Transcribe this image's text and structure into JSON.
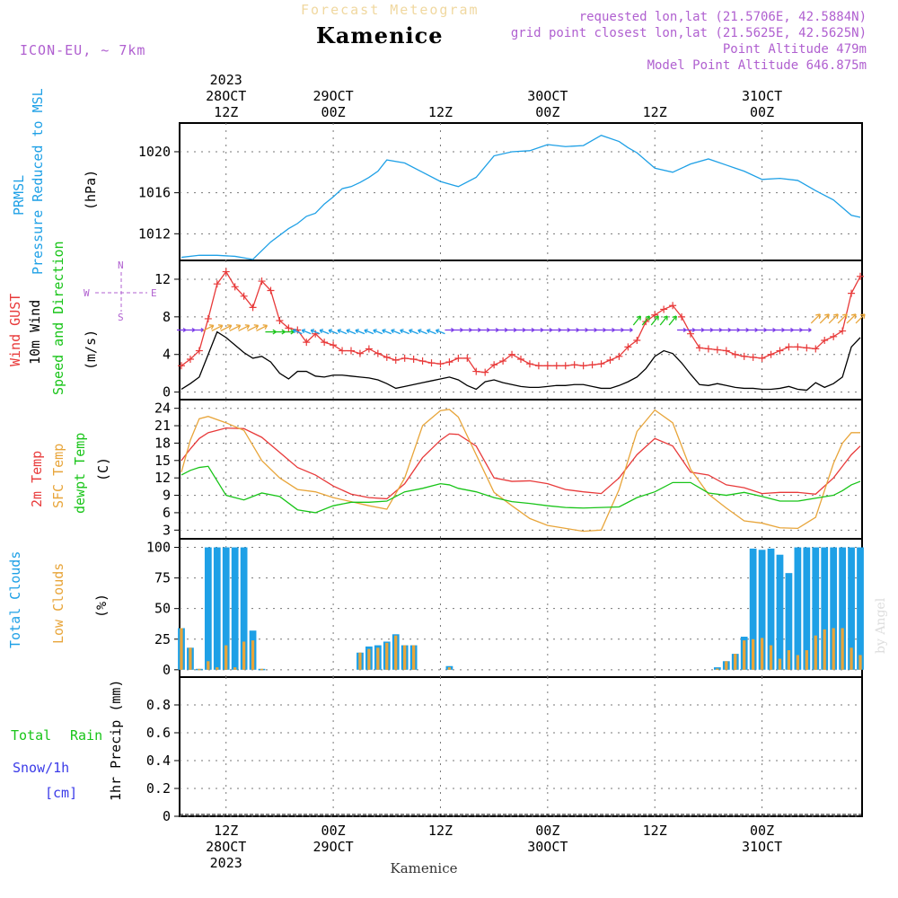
{
  "header": {
    "title": "Kamenice",
    "subtitle": "Forecast Meteogram",
    "model": "ICON-EU, ~ 7km",
    "requested": "requested lon,lat (21.5706E, 42.5884N)",
    "gridpoint": "grid point closest lon,lat (21.5625E, 42.5625N)",
    "point_alt": "Point Altitude 479m",
    "model_alt": "Model Point Altitude 646.875m",
    "footer": "Kamenice",
    "credit": "by Angel",
    "colors": {
      "title_fade": "#f0d8a0",
      "meta": "#b060d0"
    }
  },
  "time_axis": {
    "top_labels": [
      {
        "h": 12,
        "lines": [
          "2023",
          "28OCT",
          "12Z"
        ]
      },
      {
        "h": 24,
        "lines": [
          "29OCT",
          "00Z"
        ]
      },
      {
        "h": 36,
        "lines": [
          "12Z"
        ]
      },
      {
        "h": 48,
        "lines": [
          "30OCT",
          "00Z"
        ]
      },
      {
        "h": 60,
        "lines": [
          "12Z"
        ]
      },
      {
        "h": 72,
        "lines": [
          "31OCT",
          "00Z"
        ]
      }
    ],
    "bottom_labels": [
      {
        "h": 12,
        "lines": [
          "12Z",
          "28OCT",
          "2023"
        ]
      },
      {
        "h": 24,
        "lines": [
          "00Z",
          "29OCT"
        ]
      },
      {
        "h": 36,
        "lines": [
          "12Z"
        ]
      },
      {
        "h": 48,
        "lines": [
          "00Z",
          "30OCT"
        ]
      },
      {
        "h": 60,
        "lines": [
          "12Z"
        ]
      },
      {
        "h": 72,
        "lines": [
          "00Z",
          "31OCT"
        ]
      }
    ],
    "x_range_hours": [
      6.8,
      83.2
    ]
  },
  "chart_data": [
    {
      "type": "line",
      "panel": "pressure",
      "labels": [
        "PRMSL",
        "Pressure Reduced to MSL",
        "(hPa)"
      ],
      "ylim": [
        1009.4,
        1022.8
      ],
      "yticks": [
        1012,
        1016,
        1020
      ],
      "x": [
        7,
        9,
        11,
        13,
        15,
        17,
        19,
        20,
        21,
        22,
        23,
        24,
        25,
        26,
        27,
        28,
        29,
        30,
        32,
        34,
        36,
        38,
        40,
        42,
        44,
        46,
        48,
        50,
        52,
        54,
        56,
        57,
        58,
        60,
        62,
        64,
        66,
        68,
        69,
        70,
        72,
        74,
        76,
        78,
        80,
        82,
        83
      ],
      "series": [
        {
          "name": "PRMSL",
          "color": "#1ea0e6",
          "values": [
            1009.7,
            1009.9,
            1009.9,
            1009.8,
            1009.5,
            1011.2,
            1012.5,
            1013.0,
            1013.7,
            1014.0,
            1014.9,
            1015.6,
            1016.4,
            1016.6,
            1017.0,
            1017.5,
            1018.1,
            1019.2,
            1018.9,
            1018.0,
            1017.1,
            1016.6,
            1017.5,
            1019.6,
            1020.0,
            1020.1,
            1020.7,
            1020.5,
            1020.6,
            1021.6,
            1021.0,
            1020.4,
            1019.9,
            1018.4,
            1018.0,
            1018.8,
            1019.3,
            1018.7,
            1018.4,
            1018.1,
            1017.3,
            1017.4,
            1017.2,
            1016.2,
            1015.3,
            1013.8,
            1013.6
          ]
        }
      ]
    },
    {
      "type": "line",
      "panel": "wind",
      "labels": [
        "Wind GUST",
        "10m Wind",
        "Speed and Direction",
        "(m/s)"
      ],
      "compass": {
        "n": "N",
        "s": "S",
        "e": "E",
        "w": "W"
      },
      "ylim": [
        -0.8,
        14.0
      ],
      "yticks": [
        0,
        4,
        8,
        12
      ],
      "x": [
        7,
        8,
        9,
        10,
        11,
        12,
        13,
        14,
        15,
        16,
        17,
        18,
        19,
        20,
        21,
        22,
        23,
        24,
        25,
        26,
        27,
        28,
        29,
        30,
        31,
        32,
        33,
        34,
        35,
        36,
        37,
        38,
        39,
        40,
        41,
        42,
        43,
        44,
        45,
        46,
        47,
        48,
        49,
        50,
        51,
        52,
        53,
        54,
        55,
        56,
        57,
        58,
        59,
        60,
        61,
        62,
        63,
        64,
        65,
        66,
        67,
        68,
        69,
        70,
        71,
        72,
        73,
        74,
        75,
        76,
        77,
        78,
        79,
        80,
        81,
        82,
        83
      ],
      "series": [
        {
          "name": "Wind GUST",
          "color": "#e83a3a",
          "markers": "+",
          "values": [
            2.8,
            3.5,
            4.4,
            7.8,
            11.5,
            12.8,
            11.2,
            10.2,
            9.0,
            11.8,
            10.8,
            7.6,
            6.8,
            6.6,
            5.3,
            6.2,
            5.3,
            5.0,
            4.4,
            4.4,
            4.1,
            4.6,
            4.1,
            3.7,
            3.4,
            3.6,
            3.5,
            3.3,
            3.1,
            3.0,
            3.2,
            3.6,
            3.6,
            2.2,
            2.1,
            2.9,
            3.3,
            4.0,
            3.5,
            3.0,
            2.8,
            2.8,
            2.8,
            2.8,
            2.9,
            2.8,
            2.9,
            3.0,
            3.4,
            3.8,
            4.8,
            5.5,
            7.5,
            8.2,
            8.8,
            9.2,
            8.0,
            6.2,
            4.7,
            4.6,
            4.5,
            4.4,
            4.0,
            3.8,
            3.7,
            3.6,
            4.0,
            4.4,
            4.8,
            4.8,
            4.7,
            4.6,
            5.5,
            5.9,
            6.5,
            10.5,
            12.3
          ]
        },
        {
          "name": "10m Wind",
          "color": "#000000",
          "values": [
            0.3,
            0.9,
            1.6,
            4.0,
            6.4,
            5.8,
            5.0,
            4.2,
            3.6,
            3.8,
            3.2,
            2.0,
            1.4,
            2.2,
            2.2,
            1.7,
            1.6,
            1.8,
            1.8,
            1.7,
            1.6,
            1.5,
            1.3,
            0.9,
            0.4,
            0.6,
            0.8,
            1.0,
            1.2,
            1.4,
            1.6,
            1.3,
            0.7,
            0.3,
            1.1,
            1.3,
            1.0,
            0.8,
            0.6,
            0.5,
            0.5,
            0.6,
            0.7,
            0.7,
            0.8,
            0.8,
            0.6,
            0.4,
            0.4,
            0.7,
            1.1,
            1.6,
            2.5,
            3.8,
            4.4,
            4.1,
            3.1,
            1.9,
            0.8,
            0.7,
            0.9,
            0.7,
            0.5,
            0.4,
            0.4,
            0.3,
            0.3,
            0.4,
            0.6,
            0.3,
            0.2,
            1.0,
            0.5,
            0.9,
            1.6,
            4.8,
            5.8
          ]
        }
      ]
    },
    {
      "type": "line",
      "panel": "temperature",
      "labels": [
        "2m Temp",
        "SFC Temp",
        "dewpt Temp",
        "(C)"
      ],
      "ylim": [
        1.5,
        25.5
      ],
      "yticks": [
        3,
        6,
        9,
        12,
        15,
        18,
        21,
        24
      ],
      "x": [
        7,
        8,
        9,
        10,
        12,
        14,
        16,
        18,
        20,
        22,
        24,
        26,
        28,
        30,
        32,
        34,
        36,
        37,
        38,
        40,
        42,
        44,
        46,
        48,
        50,
        52,
        54,
        56,
        58,
        60,
        62,
        64,
        66,
        68,
        70,
        72,
        74,
        76,
        78,
        80,
        81,
        82,
        83
      ],
      "series": [
        {
          "name": "2m Temp",
          "color": "#e83a3a",
          "values": [
            15.0,
            17.0,
            18.8,
            19.8,
            20.6,
            20.5,
            19.0,
            16.4,
            13.8,
            12.5,
            10.6,
            9.2,
            8.6,
            8.4,
            11.0,
            15.5,
            18.5,
            19.6,
            19.5,
            17.5,
            12.0,
            11.4,
            11.5,
            11.0,
            10.0,
            9.6,
            9.3,
            12.0,
            16.0,
            18.8,
            17.5,
            13.0,
            12.5,
            10.8,
            10.3,
            9.3,
            9.5,
            9.5,
            9.2,
            12.0,
            14.0,
            16.0,
            17.5
          ]
        },
        {
          "name": "SFC Temp",
          "color": "#e8a53a",
          "values": [
            13.0,
            18.5,
            22.2,
            22.6,
            21.5,
            20.2,
            15.0,
            12.0,
            10.0,
            9.6,
            8.6,
            7.9,
            7.2,
            6.6,
            12.0,
            21.0,
            23.6,
            23.8,
            22.5,
            16.0,
            9.5,
            7.2,
            5.0,
            3.8,
            3.3,
            2.8,
            3.0,
            10.0,
            20.0,
            23.7,
            21.5,
            13.5,
            9.2,
            6.8,
            4.6,
            4.2,
            3.4,
            3.3,
            5.2,
            14.5,
            18.0,
            19.8,
            19.8
          ]
        },
        {
          "name": "dewpt Temp",
          "color": "#18c418",
          "values": [
            12.5,
            13.3,
            13.8,
            14.0,
            9.0,
            8.2,
            9.4,
            8.8,
            6.5,
            6.0,
            7.2,
            7.8,
            7.8,
            8.0,
            9.6,
            10.2,
            11.0,
            10.8,
            10.2,
            9.6,
            8.6,
            7.9,
            7.6,
            7.2,
            6.9,
            6.8,
            6.9,
            7.0,
            8.6,
            9.6,
            11.2,
            11.2,
            9.4,
            9.0,
            9.5,
            8.8,
            8.0,
            8.0,
            8.5,
            9.0,
            9.8,
            10.8,
            11.4
          ]
        }
      ]
    },
    {
      "type": "bar",
      "panel": "clouds",
      "labels": [
        "Total Clouds",
        "Low Clouds",
        "(%)"
      ],
      "ylim": [
        -6,
        107
      ],
      "yticks": [
        0,
        25,
        50,
        75,
        100
      ],
      "x": [
        7,
        8,
        9,
        10,
        11,
        12,
        13,
        14,
        15,
        16,
        27,
        28,
        29,
        30,
        31,
        32,
        33,
        37,
        67,
        68,
        69,
        70,
        71,
        72,
        73,
        74,
        75,
        76,
        77,
        78,
        79,
        80,
        81,
        82,
        83
      ],
      "series": [
        {
          "name": "Total Clouds",
          "color": "#1ea0e6",
          "values": [
            34,
            18,
            0,
            100,
            100,
            100,
            100,
            100,
            32,
            0,
            14,
            19,
            20,
            23,
            29,
            20,
            20,
            3,
            2,
            7,
            13,
            27,
            99,
            98,
            99,
            94,
            79,
            100,
            100,
            100,
            100,
            100,
            100,
            100,
            100
          ]
        },
        {
          "name": "Low Clouds",
          "color": "#e8a53a",
          "values": [
            34,
            18,
            0,
            7,
            2,
            20,
            2,
            23,
            24,
            0,
            14,
            17,
            18,
            22,
            28,
            20,
            20,
            2,
            1,
            7,
            13,
            24,
            25,
            26,
            20,
            9,
            16,
            12,
            16,
            28,
            33,
            34,
            34,
            18,
            12
          ]
        }
      ]
    },
    {
      "type": "bar",
      "panel": "precip",
      "labels": [
        "Total",
        "Rain",
        "Snow/1h",
        "[cm]",
        "1hr Precip (mm)"
      ],
      "ylim": [
        0,
        1.0
      ],
      "yticks": [
        0,
        0.2,
        0.4,
        0.6,
        0.8
      ],
      "ytick_labels": [
        "0",
        "0.2",
        "0.4",
        "0.6",
        "0.8"
      ],
      "x": [],
      "series": [
        {
          "name": "Total Rain",
          "color": "#18c418",
          "values": []
        },
        {
          "name": "Snow/1h",
          "color": "#3a3ae8",
          "values": []
        }
      ]
    }
  ]
}
